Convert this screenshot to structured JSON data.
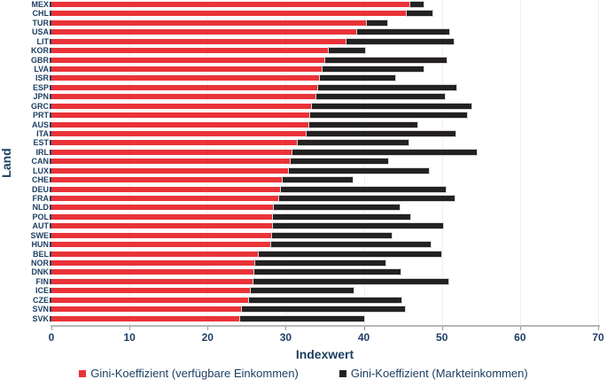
{
  "chart_data": {
    "type": "bar",
    "orientation": "horizontal",
    "title": "",
    "xlabel": "Indexwert",
    "ylabel": "Land",
    "xlim": [
      0,
      70
    ],
    "xticks": [
      0,
      10,
      20,
      30,
      40,
      50,
      60,
      70
    ],
    "grid": true,
    "legend_position": "bottom",
    "note": "Black (Markteinkommen) segment is drawn stacked from the red (verfügbare Einkommen) value out to the market-income Gini value",
    "categories": [
      "MEX",
      "CHL",
      "TUR",
      "USA",
      "LIT",
      "KOR",
      "GBR",
      "LVA",
      "ISR",
      "ESP",
      "JPN",
      "GRC",
      "PRT",
      "AUS",
      "ITA",
      "EST",
      "IRL",
      "CAN",
      "LUX",
      "CHE",
      "DEU",
      "FRA",
      "NLD",
      "POL",
      "AUT",
      "SWE",
      "HUN",
      "BEL",
      "NOR",
      "DNK",
      "FIN",
      "ICE",
      "CZE",
      "SVN",
      "SVK"
    ],
    "series": [
      {
        "name": "Gini-Koeffizient (verfügbare Einkommen)",
        "color": "#e93338",
        "values": [
          46.0,
          45.5,
          40.4,
          39.1,
          37.8,
          35.5,
          35.1,
          34.7,
          34.4,
          34.1,
          33.9,
          33.4,
          33.1,
          33.0,
          32.7,
          31.5,
          30.9,
          30.6,
          30.4,
          29.6,
          29.4,
          29.2,
          28.5,
          28.4,
          28.4,
          28.2,
          28.1,
          26.6,
          26.1,
          26.0,
          25.9,
          25.5,
          25.3,
          24.4,
          24.2
        ]
      },
      {
        "name": "Gini-Koeffizient (Markteinkommen)",
        "color": "#242122",
        "values": [
          47.6,
          48.8,
          43.0,
          50.9,
          51.5,
          40.2,
          50.6,
          47.6,
          44.0,
          51.8,
          50.4,
          53.8,
          53.2,
          46.9,
          51.7,
          45.7,
          54.5,
          43.1,
          48.3,
          38.6,
          50.5,
          51.6,
          44.6,
          45.9,
          50.2,
          43.6,
          48.6,
          49.9,
          42.8,
          44.7,
          50.8,
          38.7,
          44.8,
          45.3,
          40.0
        ]
      }
    ]
  },
  "axis": {
    "xlabel": "Indexwert",
    "ylabel": "Land"
  },
  "legend": {
    "items": [
      {
        "label": "Gini-Koeffizient (verfügbare Einkommen)",
        "color": "#e93338"
      },
      {
        "label": "Gini-Koeffizient (Markteinkommen)",
        "color": "#242122"
      }
    ]
  },
  "colors": {
    "text": "#1d3f63",
    "gridline": "#efefef",
    "axis_line": "#b7b7b7",
    "red_series": "#e93338",
    "black_series": "#242122"
  }
}
